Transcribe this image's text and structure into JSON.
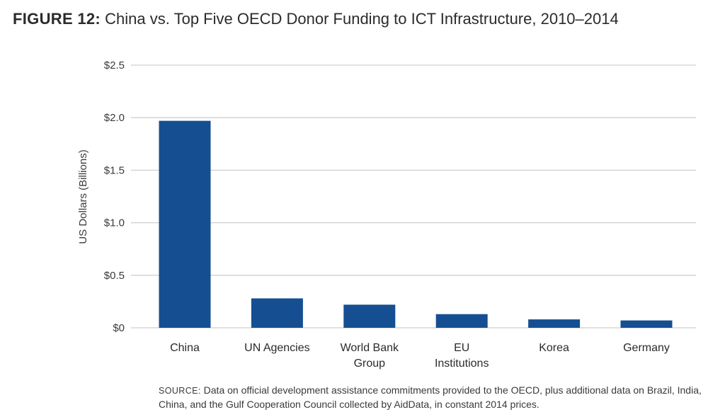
{
  "figure": {
    "label": "FIGURE 12:",
    "title": "China vs. Top Five OECD Donor Funding to ICT Infrastructure, 2010–2014"
  },
  "source": {
    "label": "SOURCE:",
    "text": "Data on official development assistance commitments provided to the OECD, plus additional data on Brazil, India, China, and the Gulf Cooperation Council collected by AidData, in constant 2014 prices."
  },
  "chart_data": {
    "type": "bar",
    "title": "China vs. Top Five OECD Donor Funding to ICT Infrastructure, 2010–2014",
    "xlabel": "",
    "ylabel": "US Dollars (Billions)",
    "ylim": [
      0,
      2.5
    ],
    "yticks": [
      0,
      0.5,
      1.0,
      1.5,
      2.0,
      2.5
    ],
    "ytick_labels": [
      "$0",
      "$0.5",
      "$1.0",
      "$1.5",
      "$2.0",
      "$2.5"
    ],
    "categories": [
      [
        "China"
      ],
      [
        "UN Agencies"
      ],
      [
        "World Bank",
        "Group"
      ],
      [
        "EU",
        "Institutions"
      ],
      [
        "Korea"
      ],
      [
        "Germany"
      ]
    ],
    "values": [
      1.97,
      0.28,
      0.22,
      0.13,
      0.08,
      0.07
    ],
    "grid": true,
    "bar_color": "#154f91",
    "grid_color": "#cfcfcf"
  }
}
